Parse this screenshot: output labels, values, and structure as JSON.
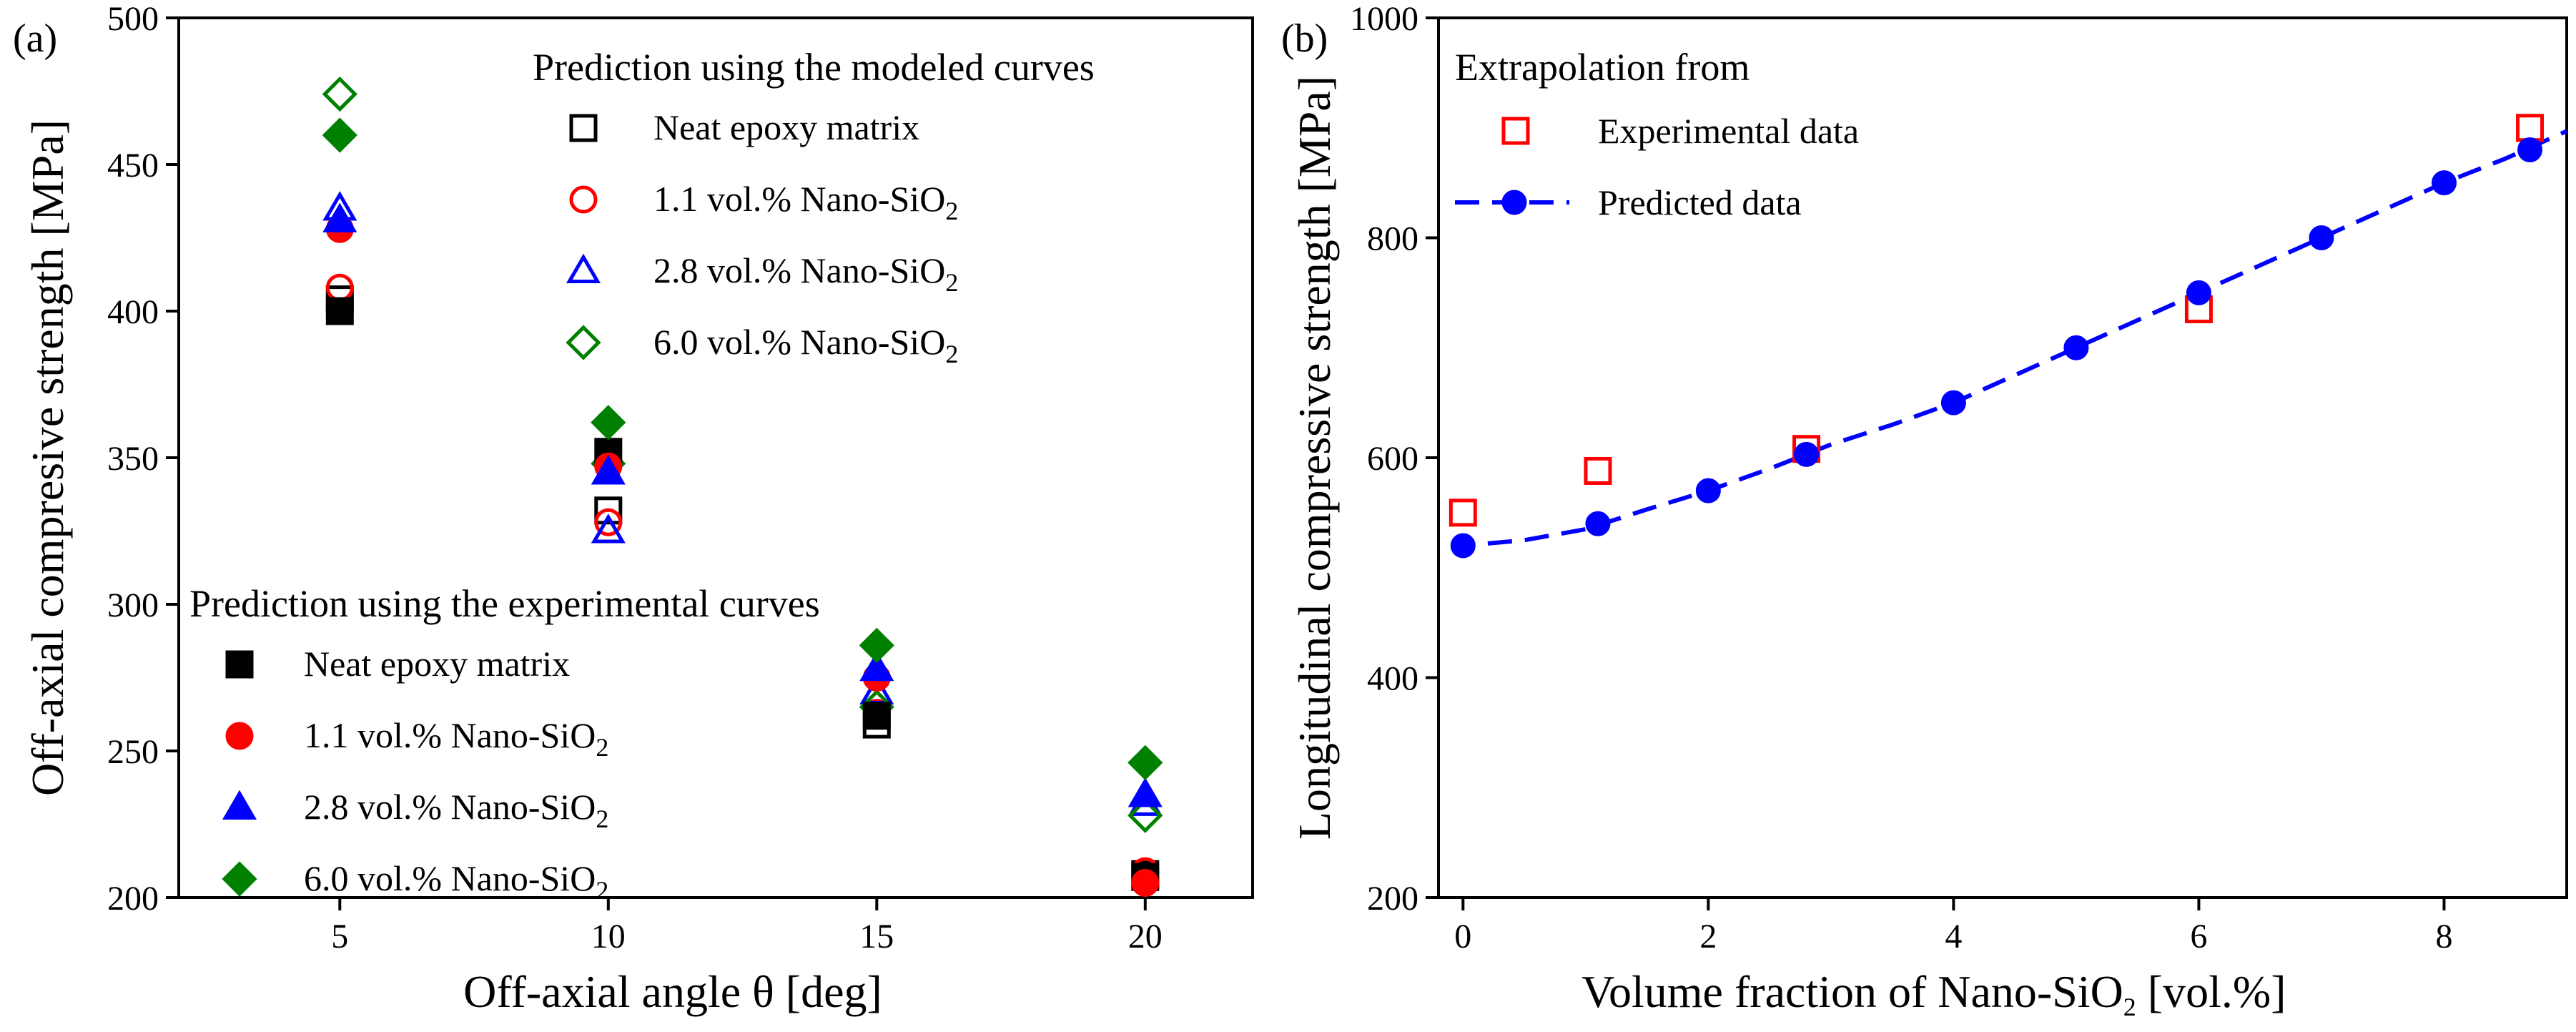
{
  "panel_labels": [
    "(a)",
    "(b)"
  ],
  "chart_data": [
    {
      "type": "scatter",
      "panel": "(a)",
      "xlabel": "Off-axial angle θ [deg]",
      "ylabel": "Off-axial compresive strength [MPa]",
      "xlim": [
        2,
        22
      ],
      "ylim": [
        200,
        500
      ],
      "xticks": [
        5,
        10,
        15,
        20
      ],
      "yticks": [
        200,
        250,
        300,
        350,
        400,
        450,
        500
      ],
      "grid": false,
      "legend_groups": [
        {
          "title": "Prediction using the modeled curves",
          "placement": "top-right",
          "filled": false,
          "entries": [
            {
              "label": "Neat epoxy matrix",
              "sub": "",
              "marker": "square",
              "color": "#000000"
            },
            {
              "label": "1.1 vol.% Nano-SiO",
              "sub": "2",
              "marker": "circle",
              "color": "#ff0000"
            },
            {
              "label": "2.8 vol.% Nano-SiO",
              "sub": "2",
              "marker": "triangle",
              "color": "#0000ff"
            },
            {
              "label": "6.0 vol.% Nano-SiO",
              "sub": "2",
              "marker": "diamond",
              "color": "#008000"
            }
          ]
        },
        {
          "title": "Prediction using the experimental curves",
          "placement": "bottom-left",
          "filled": true,
          "entries": [
            {
              "label": "Neat epoxy matrix",
              "sub": "",
              "marker": "square",
              "color": "#000000"
            },
            {
              "label": "1.1 vol.% Nano-SiO",
              "sub": "2",
              "marker": "circle",
              "color": "#ff0000"
            },
            {
              "label": "2.8 vol.% Nano-SiO",
              "sub": "2",
              "marker": "triangle",
              "color": "#0000ff"
            },
            {
              "label": "6.0 vol.% Nano-SiO",
              "sub": "2",
              "marker": "diamond",
              "color": "#008000"
            }
          ]
        }
      ],
      "series": [
        {
          "group": 0,
          "marker": "square",
          "filled": false,
          "color": "#000000",
          "x": [
            5,
            10,
            15,
            20
          ],
          "y": [
            404,
            332,
            259,
            208
          ]
        },
        {
          "group": 0,
          "marker": "circle",
          "filled": false,
          "color": "#ff0000",
          "x": [
            5,
            10,
            15,
            20
          ],
          "y": [
            408,
            328,
            263,
            209
          ]
        },
        {
          "group": 0,
          "marker": "triangle",
          "filled": false,
          "color": "#0000ff",
          "x": [
            5,
            10,
            15,
            20
          ],
          "y": [
            435,
            325,
            270,
            232
          ]
        },
        {
          "group": 0,
          "marker": "diamond",
          "filled": false,
          "color": "#008000",
          "x": [
            5,
            10,
            15,
            20
          ],
          "y": [
            474,
            348,
            265,
            228
          ]
        },
        {
          "group": 1,
          "marker": "square",
          "filled": true,
          "color": "#000000",
          "x": [
            5,
            10,
            15,
            20
          ],
          "y": [
            400,
            352,
            262,
            207
          ]
        },
        {
          "group": 1,
          "marker": "circle",
          "filled": true,
          "color": "#ff0000",
          "x": [
            5,
            10,
            15,
            20
          ],
          "y": [
            428,
            347,
            275,
            205
          ]
        },
        {
          "group": 1,
          "marker": "triangle",
          "filled": true,
          "color": "#0000ff",
          "x": [
            5,
            10,
            15,
            20
          ],
          "y": [
            431,
            345,
            278,
            235
          ]
        },
        {
          "group": 1,
          "marker": "diamond",
          "filled": true,
          "color": "#008000",
          "x": [
            5,
            10,
            15,
            20
          ],
          "y": [
            460,
            362,
            286,
            246
          ]
        }
      ]
    },
    {
      "type": "scatter",
      "panel": "(b)",
      "xlabel": "Volume fraction of Nano-SiO",
      "xlabel_sub": "2",
      "xlabel_tail": " [vol.%]",
      "ylabel": "Longitudinal compressive strength [MPa]",
      "xlim": [
        -0.2,
        9
      ],
      "ylim": [
        200,
        1000
      ],
      "xticks": [
        0,
        2,
        4,
        6,
        8
      ],
      "yticks": [
        200,
        400,
        600,
        800,
        1000
      ],
      "grid": false,
      "legend": {
        "title": "Extrapolation from",
        "placement": "top-left",
        "entries": [
          {
            "label": "Experimental data",
            "marker": "square-open",
            "color": "#ff0000"
          },
          {
            "label": "Predicted data",
            "marker": "circle-dashed-line",
            "color": "#0000ff"
          }
        ]
      },
      "series": [
        {
          "name": "Experimental data",
          "marker": "square",
          "filled": false,
          "color": "#ff0000",
          "x": [
            0,
            1.1,
            2.8,
            6.0,
            8.7
          ],
          "y": [
            550,
            588,
            608,
            735,
            900
          ]
        },
        {
          "name": "Predicted data",
          "marker": "circle",
          "filled": true,
          "color": "#0000ff",
          "line": "dashed",
          "x": [
            0,
            1.1,
            2,
            2.8,
            4,
            5,
            6,
            7,
            8,
            8.7
          ],
          "y": [
            520,
            540,
            570,
            603,
            650,
            700,
            750,
            800,
            850,
            880
          ]
        }
      ],
      "fit_curve": {
        "color": "#0000ff",
        "style": "dashed",
        "x": [
          -0.1,
          0,
          0.5,
          1,
          1.5,
          2,
          2.5,
          3,
          3.5,
          4,
          4.5,
          5,
          5.5,
          6,
          6.5,
          7,
          7.5,
          8,
          8.5,
          9
        ],
        "y": [
          519,
          520,
          525,
          535,
          553,
          570,
          590,
          612,
          630,
          650,
          675,
          700,
          725,
          750,
          775,
          800,
          825,
          850,
          872,
          897
        ]
      }
    }
  ]
}
